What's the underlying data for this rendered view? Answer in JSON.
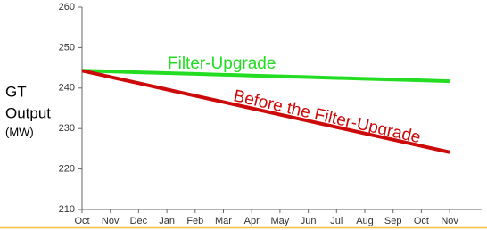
{
  "chart_data": {
    "type": "line",
    "y_label": [
      "GT",
      "Output"
    ],
    "y_unit": "(MW)",
    "categories": [
      "Oct",
      "Nov",
      "Dec",
      "Jan",
      "Feb",
      "Mar",
      "Apr",
      "May",
      "Jun",
      "Jul",
      "Aug",
      "Sep",
      "Oct",
      "Nov"
    ],
    "series": [
      {
        "name": "Filter-Upgrade",
        "color": "#22dd22",
        "values": [
          244.3,
          244.1,
          243.9,
          243.7,
          243.5,
          243.3,
          243.1,
          242.9,
          242.7,
          242.5,
          242.3,
          242.1,
          241.9,
          241.7
        ]
      },
      {
        "name": "Before the Filter-Upgrade",
        "color": "#cc0a0a",
        "values": [
          244.3,
          242.75,
          241.2,
          239.65,
          238.1,
          236.55,
          235.0,
          233.45,
          231.9,
          230.35,
          228.8,
          227.25,
          225.7,
          224.15
        ]
      }
    ],
    "ylim": [
      210,
      260
    ],
    "yticks": [
      210,
      220,
      230,
      240,
      250,
      260
    ],
    "grid": false
  }
}
